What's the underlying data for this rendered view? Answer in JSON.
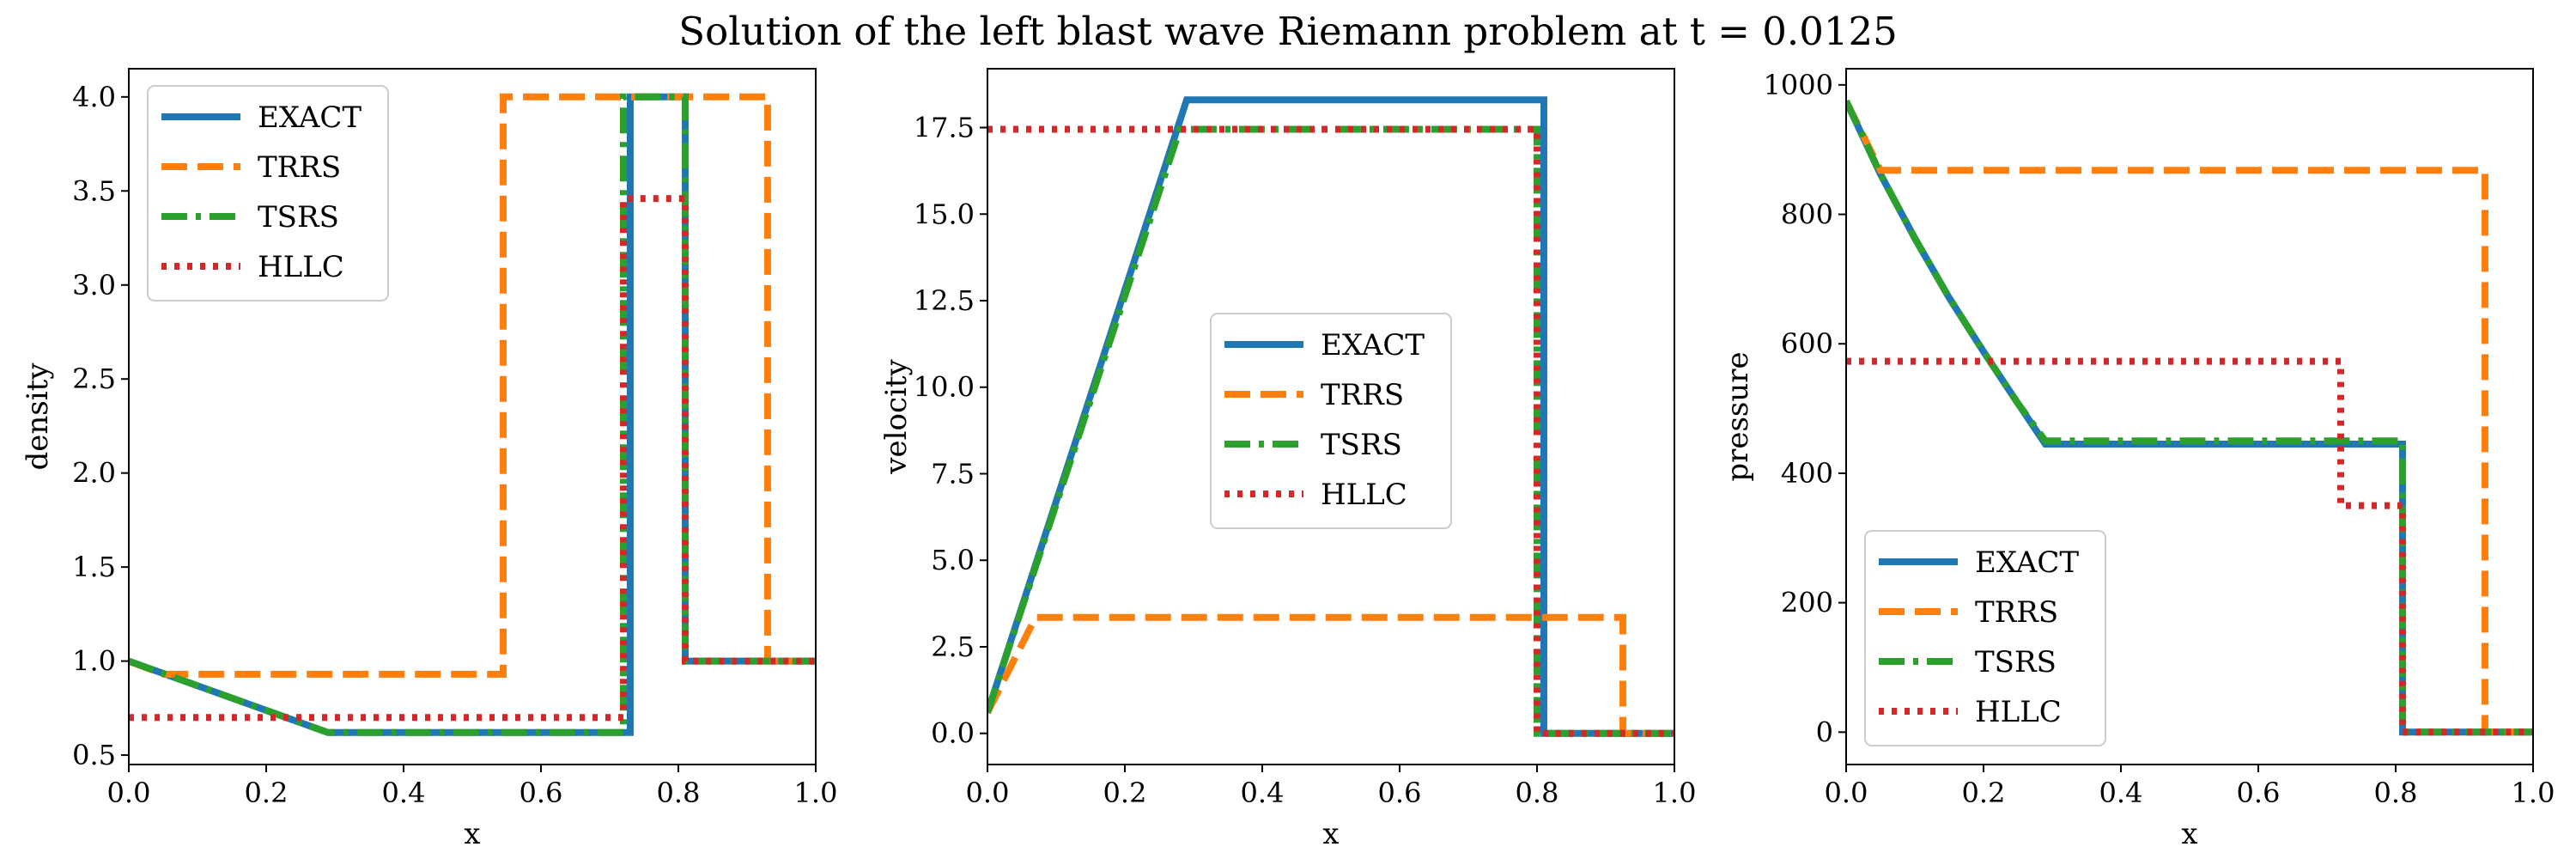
{
  "title": "Solution of the left blast wave Riemann problem at t = 0.0125",
  "colors": {
    "EXACT": "#1f77b4",
    "TRRS": "#ff7f0e",
    "TSRS": "#2ca02c",
    "HLLC": "#d62728"
  },
  "chart_data": [
    {
      "type": "line",
      "xlabel": "x",
      "ylabel": "density",
      "xlim": [
        0.0,
        1.0
      ],
      "ylim": [
        0.45,
        4.15
      ],
      "xticks": [
        "0.0",
        "0.2",
        "0.4",
        "0.6",
        "0.8",
        "1.0"
      ],
      "xtick_values": [
        0.0,
        0.2,
        0.4,
        0.6,
        0.8,
        1.0
      ],
      "yticks": [
        "0.5",
        "1.0",
        "1.5",
        "2.0",
        "2.5",
        "3.0",
        "3.5",
        "4.0"
      ],
      "ytick_values": [
        0.5,
        1.0,
        1.5,
        2.0,
        2.5,
        3.0,
        3.5,
        4.0
      ],
      "legend_position": "upper-left",
      "series": [
        {
          "name": "EXACT",
          "x": [
            0.0,
            0.29,
            0.73,
            0.73,
            0.81,
            0.81,
            1.0
          ],
          "y": [
            1.0,
            0.62,
            0.62,
            4.0,
            4.0,
            1.0,
            1.0
          ]
        },
        {
          "name": "TRRS",
          "x": [
            0.0,
            0.05,
            0.545,
            0.545,
            0.93,
            0.93,
            1.0
          ],
          "y": [
            1.0,
            0.93,
            0.93,
            4.0,
            4.0,
            1.0,
            1.0
          ]
        },
        {
          "name": "TSRS",
          "x": [
            0.0,
            0.29,
            0.72,
            0.72,
            0.81,
            0.81,
            1.0
          ],
          "y": [
            1.0,
            0.62,
            0.62,
            4.0,
            4.0,
            1.0,
            1.0
          ]
        },
        {
          "name": "HLLC",
          "x": [
            0.0,
            0.72,
            0.72,
            0.81,
            0.81,
            1.0
          ],
          "y": [
            0.7,
            0.7,
            3.46,
            3.46,
            1.0,
            1.0
          ]
        }
      ]
    },
    {
      "type": "line",
      "xlabel": "x",
      "ylabel": "velocity",
      "xlim": [
        0.0,
        1.0
      ],
      "ylim": [
        -0.9,
        19.2
      ],
      "xticks": [
        "0.0",
        "0.2",
        "0.4",
        "0.6",
        "0.8",
        "1.0"
      ],
      "xtick_values": [
        0.0,
        0.2,
        0.4,
        0.6,
        0.8,
        1.0
      ],
      "yticks": [
        "0.0",
        "2.5",
        "5.0",
        "7.5",
        "10.0",
        "12.5",
        "15.0",
        "17.5"
      ],
      "ytick_values": [
        0.0,
        2.5,
        5.0,
        7.5,
        10.0,
        12.5,
        15.0,
        17.5
      ],
      "legend_position": "center",
      "series": [
        {
          "name": "EXACT",
          "x": [
            0.0,
            0.29,
            0.81,
            0.81,
            1.0
          ],
          "y": [
            0.6,
            18.3,
            18.3,
            0.0,
            0.0
          ]
        },
        {
          "name": "TRRS",
          "x": [
            0.0,
            0.07,
            0.925,
            0.925,
            1.0
          ],
          "y": [
            0.6,
            3.35,
            3.35,
            0.0,
            0.0
          ]
        },
        {
          "name": "TSRS",
          "x": [
            0.0,
            0.28,
            0.8,
            0.8,
            1.0
          ],
          "y": [
            0.6,
            17.45,
            17.45,
            0.0,
            0.0
          ]
        },
        {
          "name": "HLLC",
          "x": [
            0.0,
            0.8,
            0.8,
            1.0
          ],
          "y": [
            17.45,
            17.45,
            0.0,
            0.0
          ]
        }
      ]
    },
    {
      "type": "line",
      "xlabel": "x",
      "ylabel": "pressure",
      "xlim": [
        0.0,
        1.0
      ],
      "ylim": [
        -50,
        1025
      ],
      "xticks": [
        "0.0",
        "0.2",
        "0.4",
        "0.6",
        "0.8",
        "1.0"
      ],
      "xtick_values": [
        0.0,
        0.2,
        0.4,
        0.6,
        0.8,
        1.0
      ],
      "yticks": [
        "0",
        "200",
        "400",
        "600",
        "800",
        "1000"
      ],
      "ytick_values": [
        0,
        200,
        400,
        600,
        800,
        1000
      ],
      "legend_position": "lower-left",
      "series": [
        {
          "name": "EXACT",
          "x": [
            0.0,
            0.05,
            0.1,
            0.15,
            0.2,
            0.25,
            0.29,
            0.81,
            0.81,
            1.0
          ],
          "y": [
            975,
            862,
            763,
            671,
            588,
            508,
            445,
            445,
            0,
            0
          ]
        },
        {
          "name": "TRRS",
          "x": [
            0.0,
            0.05,
            0.93,
            0.93,
            1.0
          ],
          "y": [
            975,
            868,
            868,
            0,
            0
          ]
        },
        {
          "name": "TSRS",
          "x": [
            0.0,
            0.05,
            0.1,
            0.15,
            0.2,
            0.25,
            0.29,
            0.81,
            0.81,
            1.0
          ],
          "y": [
            975,
            862,
            763,
            671,
            588,
            508,
            450,
            450,
            0,
            0
          ]
        },
        {
          "name": "HLLC",
          "x": [
            0.0,
            0.72,
            0.72,
            0.81,
            0.81,
            1.0
          ],
          "y": [
            573,
            573,
            350,
            350,
            0,
            0
          ]
        }
      ]
    }
  ]
}
